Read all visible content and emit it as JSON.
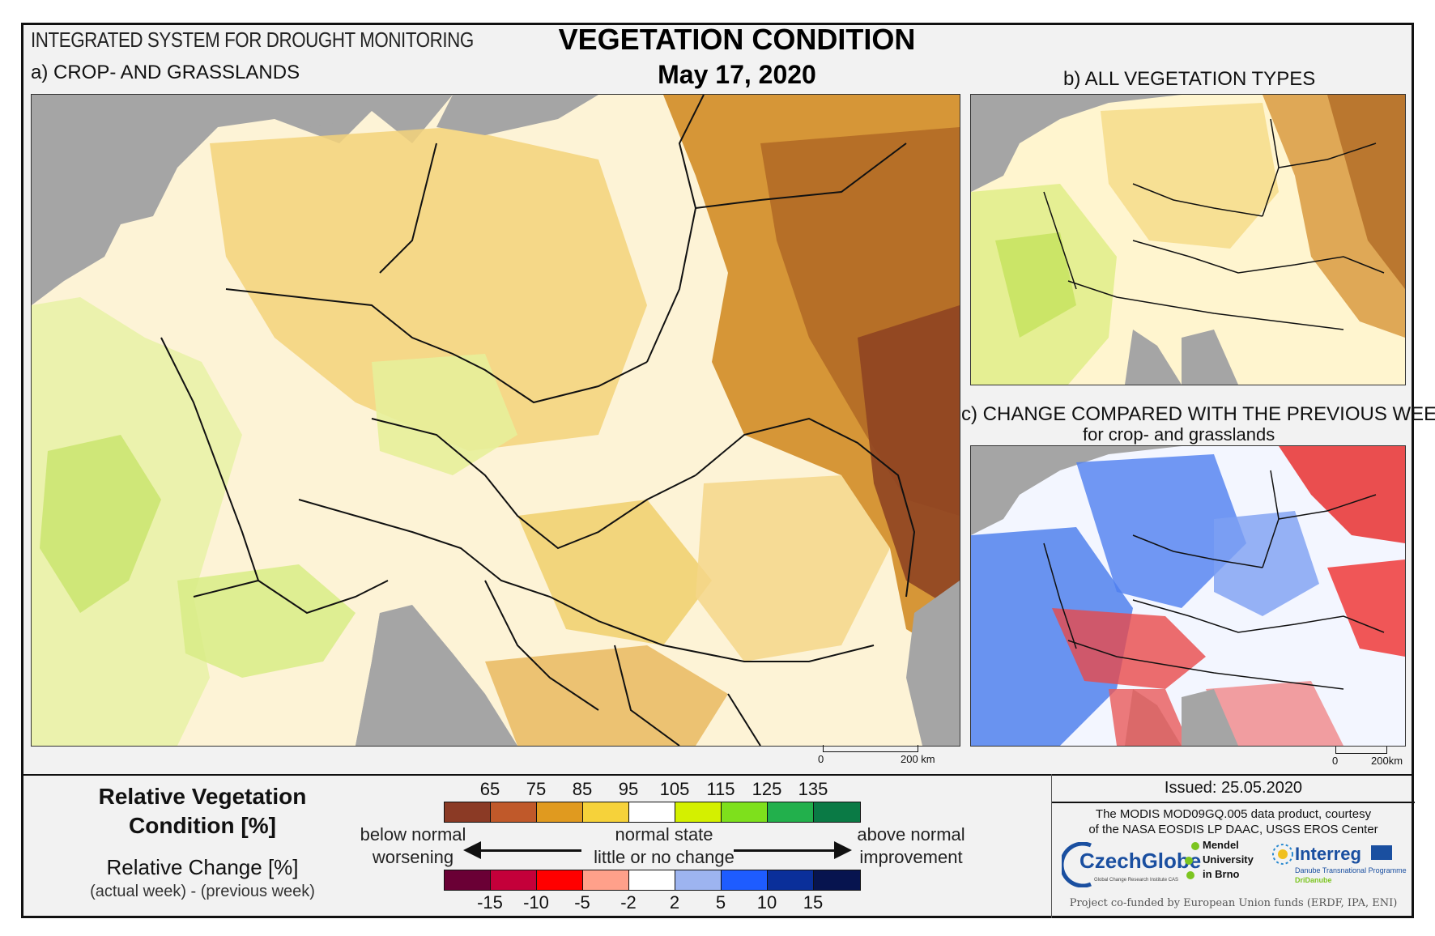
{
  "header": {
    "system_title": "INTEGRATED SYSTEM FOR DROUGHT MONITORING",
    "title": "VEGETATION CONDITION",
    "date": "May 17, 2020"
  },
  "panels": {
    "a_label": "a) CROP- AND GRASSLANDS",
    "b_label": "b) ALL VEGETATION TYPES",
    "c_label": "c) CHANGE COMPARED WITH THE PREVIOUS WEEK",
    "c_sublabel": "for crop- and grasslands"
  },
  "scale_bars": {
    "main_zero": "0",
    "main_km": "200 km",
    "small_zero": "0",
    "small_km": "200km"
  },
  "legend": {
    "rvc_title_line1": "Relative Vegetation",
    "rvc_title_line2": "Condition [%]",
    "rc_title": "Relative Change [%]",
    "rc_note": "(actual week) - (previous week)",
    "rvc_ticks": [
      "65",
      "75",
      "85",
      "95",
      "105",
      "115",
      "125",
      "135"
    ],
    "rvc_colors": [
      "#8b3a25",
      "#c0592a",
      "#e09a1f",
      "#f6d23a",
      "#ffffff",
      "#d4f000",
      "#7ee01c",
      "#22b04c",
      "#0a7a45"
    ],
    "rc_ticks": [
      "-15",
      "-10",
      "-5",
      "-2",
      "2",
      "5",
      "10",
      "15"
    ],
    "rc_colors": [
      "#6a0035",
      "#c4003a",
      "#ff0000",
      "#ffa08a",
      "#ffffff",
      "#9db4f0",
      "#1e5cff",
      "#0a2f9a",
      "#07144f"
    ],
    "below_line1": "below normal",
    "below_line2": "worsening",
    "normal_line1": "normal state",
    "normal_line2": "little or no change",
    "above_line1": "above normal",
    "above_line2": "improvement"
  },
  "info": {
    "issued": "Issued: 25.05.2020",
    "courtesy_line1": "The MODIS MOD09GQ.005 data product, courtesy",
    "courtesy_line2": "of the NASA EOSDIS LP DAAC, USGS EROS Center",
    "logo_czechglobe": "CzechGlobe",
    "logo_czechglobe_sub": "Global Change Research Institute CAS",
    "logo_mendel_1": "Mendel",
    "logo_mendel_2": "University",
    "logo_mendel_3": "in Brno",
    "logo_interreg": "Interreg",
    "logo_interreg_sub": "Danube Transnational Programme",
    "logo_interreg_sub2": "DriDanube",
    "funded": "Project co-funded by European Union funds (ERDF, IPA, ENI)"
  }
}
